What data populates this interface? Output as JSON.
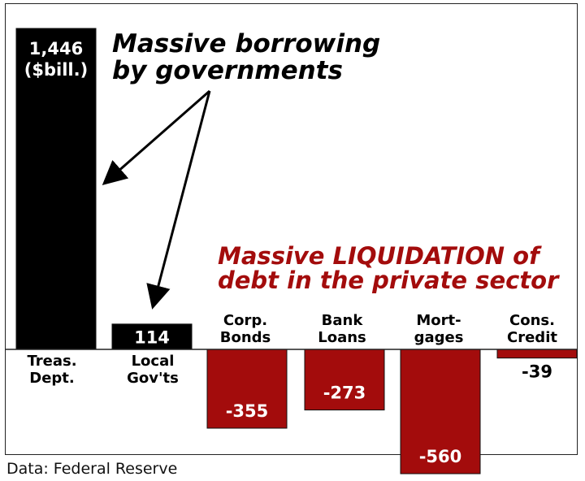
{
  "chart_data": {
    "type": "bar",
    "categories": [
      [
        "Treas.",
        "Dept."
      ],
      [
        "Local",
        "Gov'ts"
      ],
      [
        "Corp.",
        "Bonds"
      ],
      [
        "Bank",
        "Loans"
      ],
      [
        "Mort-",
        "gages"
      ],
      [
        "Cons.",
        "Credit"
      ]
    ],
    "values": [
      1446,
      114,
      -355,
      -273,
      -560,
      -39
    ],
    "value_labels": [
      "1,446",
      "114",
      "-355",
      "-273",
      "-560",
      "-39"
    ],
    "first_value_unit": "($bill.)",
    "colors": [
      "#000000",
      "#000000",
      "#a30c0c",
      "#a30c0c",
      "#a30c0c",
      "#a30c0c"
    ],
    "grid": false
  },
  "annotations": {
    "governments": [
      "Massive borrowing",
      "by governments"
    ],
    "private": [
      "Massive LIQUIDATION of",
      "debt in the private sector"
    ]
  },
  "source": "Data: Federal Reserve"
}
